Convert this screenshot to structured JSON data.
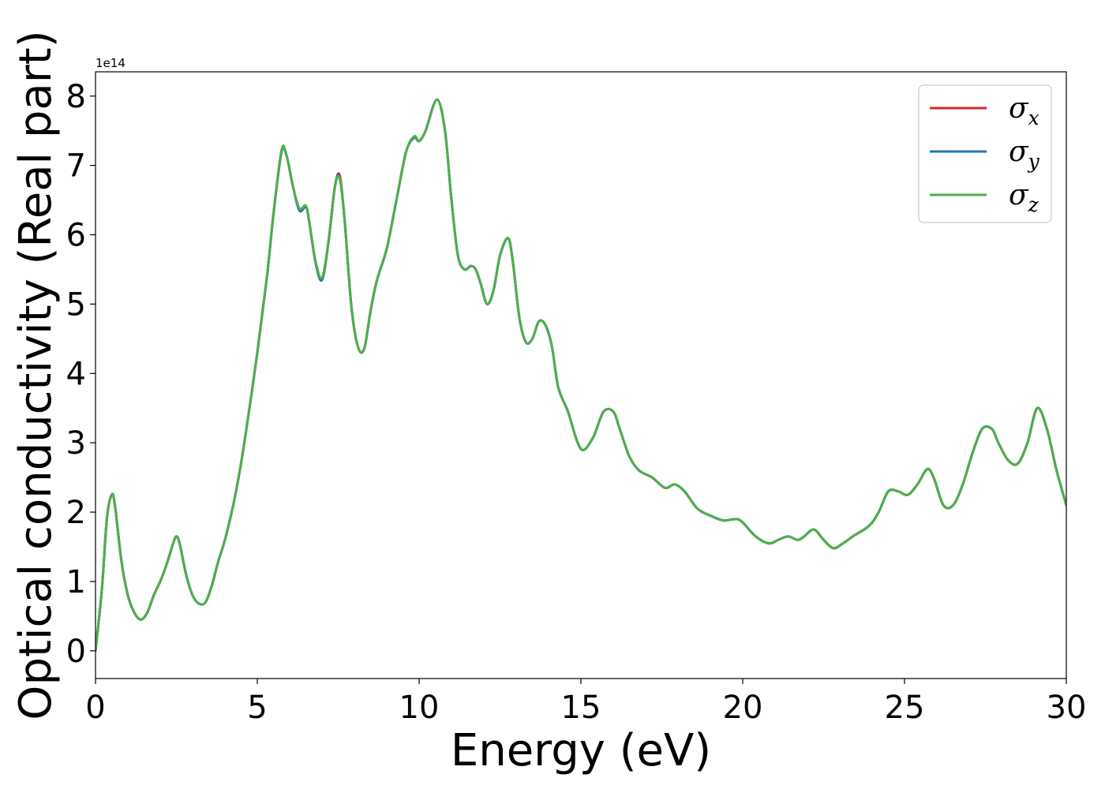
{
  "chart_data": {
    "type": "line",
    "title": "",
    "xlabel": "Energy (eV)",
    "ylabel": "Optical conductivity (Real part)",
    "y_offset_label": "1e14",
    "xlim": [
      0,
      30
    ],
    "ylim": [
      -0.4,
      8.35
    ],
    "x_unit_scale": 1,
    "y_unit_scale": 100000000000000.0,
    "xticks": [
      0,
      5,
      10,
      15,
      20,
      25,
      30
    ],
    "yticks": [
      0,
      1,
      2,
      3,
      4,
      5,
      6,
      7,
      8
    ],
    "grid": false,
    "legend_position": "top-right",
    "x": [
      0,
      0.2,
      0.35,
      0.5,
      0.6,
      0.8,
      1.0,
      1.2,
      1.4,
      1.6,
      1.8,
      2.0,
      2.2,
      2.4,
      2.5,
      2.6,
      2.8,
      3.0,
      3.2,
      3.4,
      3.6,
      3.8,
      4.0,
      4.3,
      4.6,
      5.0,
      5.3,
      5.5,
      5.75,
      5.9,
      6.1,
      6.3,
      6.5,
      6.6,
      6.8,
      7.0,
      7.2,
      7.4,
      7.55,
      7.7,
      7.9,
      8.1,
      8.3,
      8.5,
      8.7,
      9.0,
      9.3,
      9.6,
      9.85,
      10.0,
      10.2,
      10.55,
      10.8,
      11.0,
      11.2,
      11.4,
      11.6,
      11.75,
      11.9,
      12.1,
      12.3,
      12.5,
      12.75,
      12.9,
      13.1,
      13.3,
      13.5,
      13.7,
      13.9,
      14.1,
      14.3,
      14.6,
      14.9,
      15.1,
      15.4,
      15.7,
      16.0,
      16.2,
      16.5,
      16.8,
      17.2,
      17.6,
      17.9,
      18.2,
      18.6,
      19.0,
      19.4,
      19.8,
      20.0,
      20.4,
      20.8,
      21.1,
      21.4,
      21.7,
      21.9,
      22.2,
      22.5,
      22.8,
      23.1,
      23.4,
      23.9,
      24.2,
      24.5,
      24.8,
      25.1,
      25.4,
      25.7,
      25.9,
      26.2,
      26.5,
      26.8,
      27.1,
      27.4,
      27.7,
      27.9,
      28.2,
      28.5,
      28.8,
      29.1,
      29.4,
      29.7,
      30.0
    ],
    "series": [
      {
        "name": "σ_x",
        "color": "#d62728",
        "values": [
          0.0,
          0.9,
          1.9,
          2.25,
          2.1,
          1.3,
          0.8,
          0.55,
          0.45,
          0.55,
          0.8,
          1.0,
          1.25,
          1.55,
          1.65,
          1.55,
          1.1,
          0.8,
          0.68,
          0.7,
          0.95,
          1.3,
          1.6,
          2.2,
          3.0,
          4.3,
          5.4,
          6.3,
          7.2,
          7.15,
          6.7,
          6.35,
          6.4,
          6.2,
          5.6,
          5.35,
          5.9,
          6.7,
          6.85,
          6.2,
          5.0,
          4.4,
          4.35,
          4.9,
          5.35,
          5.8,
          6.5,
          7.2,
          7.4,
          7.35,
          7.5,
          7.95,
          7.5,
          6.5,
          5.7,
          5.5,
          5.55,
          5.5,
          5.3,
          5.0,
          5.2,
          5.7,
          5.95,
          5.6,
          4.8,
          4.45,
          4.5,
          4.75,
          4.7,
          4.4,
          3.8,
          3.45,
          3.0,
          2.9,
          3.1,
          3.45,
          3.45,
          3.2,
          2.8,
          2.6,
          2.5,
          2.35,
          2.4,
          2.3,
          2.05,
          1.95,
          1.88,
          1.9,
          1.85,
          1.65,
          1.55,
          1.6,
          1.65,
          1.6,
          1.65,
          1.75,
          1.6,
          1.48,
          1.55,
          1.65,
          1.8,
          2.0,
          2.3,
          2.3,
          2.25,
          2.4,
          2.62,
          2.5,
          2.1,
          2.1,
          2.4,
          2.85,
          3.2,
          3.2,
          3.0,
          2.75,
          2.7,
          3.0,
          3.5,
          3.2,
          2.6,
          2.1
        ]
      },
      {
        "name": "σ_y",
        "color": "#1f77b4",
        "values": [
          0.0,
          0.9,
          1.9,
          2.25,
          2.1,
          1.3,
          0.8,
          0.55,
          0.45,
          0.55,
          0.8,
          1.0,
          1.25,
          1.55,
          1.65,
          1.55,
          1.1,
          0.8,
          0.68,
          0.7,
          0.95,
          1.3,
          1.6,
          2.2,
          3.0,
          4.3,
          5.4,
          6.3,
          7.2,
          7.15,
          6.7,
          6.35,
          6.4,
          6.2,
          5.6,
          5.35,
          5.9,
          6.7,
          6.82,
          6.2,
          5.0,
          4.4,
          4.35,
          4.9,
          5.35,
          5.8,
          6.5,
          7.2,
          7.4,
          7.35,
          7.5,
          7.95,
          7.5,
          6.5,
          5.7,
          5.5,
          5.55,
          5.5,
          5.3,
          5.0,
          5.2,
          5.7,
          5.95,
          5.6,
          4.8,
          4.45,
          4.5,
          4.75,
          4.7,
          4.4,
          3.8,
          3.45,
          3.0,
          2.9,
          3.1,
          3.45,
          3.45,
          3.2,
          2.8,
          2.6,
          2.5,
          2.35,
          2.4,
          2.3,
          2.05,
          1.95,
          1.88,
          1.9,
          1.85,
          1.65,
          1.55,
          1.6,
          1.65,
          1.6,
          1.65,
          1.75,
          1.6,
          1.48,
          1.55,
          1.65,
          1.8,
          2.0,
          2.3,
          2.3,
          2.25,
          2.4,
          2.62,
          2.5,
          2.1,
          2.1,
          2.4,
          2.85,
          3.2,
          3.2,
          3.0,
          2.75,
          2.7,
          3.0,
          3.5,
          3.2,
          2.6,
          2.1
        ]
      },
      {
        "name": "σ_z",
        "color": "#4daf4a",
        "values": [
          0.0,
          0.9,
          1.9,
          2.25,
          2.1,
          1.3,
          0.8,
          0.55,
          0.45,
          0.55,
          0.8,
          1.0,
          1.25,
          1.55,
          1.65,
          1.55,
          1.1,
          0.8,
          0.68,
          0.7,
          0.95,
          1.3,
          1.6,
          2.2,
          3.0,
          4.3,
          5.4,
          6.3,
          7.22,
          7.15,
          6.7,
          6.38,
          6.42,
          6.2,
          5.62,
          5.38,
          5.9,
          6.7,
          6.8,
          6.2,
          5.0,
          4.4,
          4.35,
          4.9,
          5.35,
          5.8,
          6.5,
          7.2,
          7.42,
          7.35,
          7.5,
          7.95,
          7.5,
          6.5,
          5.7,
          5.5,
          5.55,
          5.5,
          5.3,
          5.0,
          5.2,
          5.7,
          5.95,
          5.6,
          4.8,
          4.45,
          4.5,
          4.75,
          4.7,
          4.4,
          3.8,
          3.45,
          3.0,
          2.9,
          3.1,
          3.45,
          3.45,
          3.2,
          2.8,
          2.6,
          2.5,
          2.35,
          2.4,
          2.3,
          2.05,
          1.95,
          1.88,
          1.9,
          1.85,
          1.65,
          1.55,
          1.6,
          1.65,
          1.6,
          1.65,
          1.75,
          1.6,
          1.48,
          1.55,
          1.65,
          1.8,
          2.0,
          2.3,
          2.3,
          2.25,
          2.4,
          2.62,
          2.5,
          2.1,
          2.1,
          2.4,
          2.85,
          3.2,
          3.2,
          3.0,
          2.75,
          2.7,
          3.0,
          3.5,
          3.2,
          2.6,
          2.1
        ]
      }
    ],
    "legend": [
      {
        "symbol": "σ",
        "subscript": "x",
        "color": "#d62728"
      },
      {
        "symbol": "σ",
        "subscript": "y",
        "color": "#1f77b4"
      },
      {
        "symbol": "σ",
        "subscript": "z",
        "color": "#4daf4a"
      }
    ]
  }
}
